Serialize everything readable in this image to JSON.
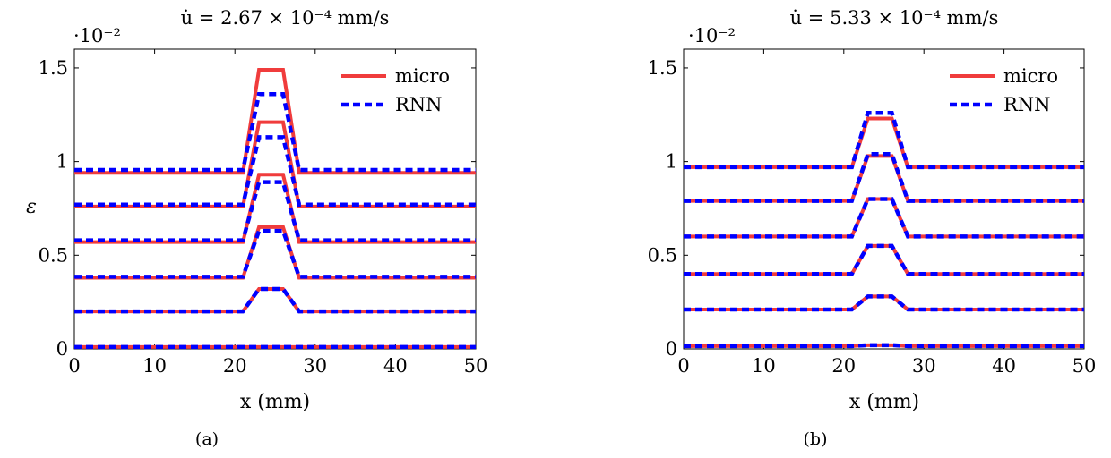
{
  "figure": {
    "panels": [
      {
        "title": "u̇ = 2.67 × 10⁻⁴ mm/s",
        "multiplier": "·10⁻²",
        "xlabel": "x (mm)",
        "ylabel": "ε",
        "caption": "(a)"
      },
      {
        "title": "u̇ = 5.33 × 10⁻⁴ mm/s",
        "multiplier": "·10⁻²",
        "xlabel": "x (mm)",
        "ylabel": "",
        "caption": "(b)"
      }
    ],
    "colors": {
      "micro": "#f03c3c",
      "rnn": "#0000ff"
    }
  },
  "chart_data": [
    {
      "type": "line",
      "title": "u̇ = 2.67 × 10⁻⁴ mm/s",
      "xlabel": "x (mm)",
      "ylabel": "ε",
      "y_multiplier": "·10⁻²",
      "xlim": [
        0,
        50
      ],
      "ylim": [
        0,
        1.6
      ],
      "xticks": [
        0,
        10,
        20,
        30,
        40,
        50
      ],
      "yticks": [
        0,
        0.5,
        1,
        1.5
      ],
      "ytick_labels": [
        "0",
        "0.5",
        "1",
        "1.5"
      ],
      "grid": false,
      "legend": {
        "position": "top-right",
        "entries": [
          {
            "name": "micro",
            "style": "solid"
          },
          {
            "name": "RNN",
            "style": "dashed"
          }
        ]
      },
      "series": [
        {
          "name": "micro",
          "x": [
            0,
            21,
            23,
            26,
            28,
            50
          ],
          "y": [
            0.01,
            0.01,
            0.01,
            0.01,
            0.01,
            0.01
          ]
        },
        {
          "name": "RNN",
          "x": [
            0,
            21,
            23,
            26,
            28,
            50
          ],
          "y": [
            0.01,
            0.01,
            0.01,
            0.01,
            0.01,
            0.01
          ]
        },
        {
          "name": "micro",
          "x": [
            0,
            21,
            23,
            26,
            28,
            50
          ],
          "y": [
            0.2,
            0.2,
            0.32,
            0.32,
            0.2,
            0.2
          ]
        },
        {
          "name": "RNN",
          "x": [
            0,
            21,
            23,
            26,
            28,
            50
          ],
          "y": [
            0.2,
            0.2,
            0.32,
            0.32,
            0.2,
            0.2
          ]
        },
        {
          "name": "micro",
          "x": [
            0,
            21,
            23,
            26,
            28,
            50
          ],
          "y": [
            0.38,
            0.38,
            0.65,
            0.65,
            0.38,
            0.38
          ]
        },
        {
          "name": "RNN",
          "x": [
            0,
            21,
            23,
            26,
            28,
            50
          ],
          "y": [
            0.385,
            0.385,
            0.63,
            0.63,
            0.385,
            0.385
          ]
        },
        {
          "name": "micro",
          "x": [
            0,
            21,
            23,
            26,
            28,
            50
          ],
          "y": [
            0.57,
            0.57,
            0.93,
            0.93,
            0.57,
            0.57
          ]
        },
        {
          "name": "RNN",
          "x": [
            0,
            21,
            23,
            26,
            28,
            50
          ],
          "y": [
            0.58,
            0.58,
            0.89,
            0.89,
            0.58,
            0.58
          ]
        },
        {
          "name": "micro",
          "x": [
            0,
            21,
            23,
            26,
            28,
            50
          ],
          "y": [
            0.76,
            0.76,
            1.21,
            1.21,
            0.76,
            0.76
          ]
        },
        {
          "name": "RNN",
          "x": [
            0,
            21,
            23,
            26,
            28,
            50
          ],
          "y": [
            0.77,
            0.77,
            1.13,
            1.13,
            0.77,
            0.77
          ]
        },
        {
          "name": "micro",
          "x": [
            0,
            21,
            23,
            26,
            28,
            50
          ],
          "y": [
            0.94,
            0.94,
            1.49,
            1.49,
            0.94,
            0.94
          ]
        },
        {
          "name": "RNN",
          "x": [
            0,
            21,
            23,
            26,
            28,
            50
          ],
          "y": [
            0.955,
            0.955,
            1.36,
            1.36,
            0.955,
            0.955
          ]
        }
      ]
    },
    {
      "type": "line",
      "title": "u̇ = 5.33 × 10⁻⁴ mm/s",
      "xlabel": "x (mm)",
      "ylabel": "",
      "y_multiplier": "·10⁻²",
      "xlim": [
        0,
        50
      ],
      "ylim": [
        0,
        1.6
      ],
      "xticks": [
        0,
        10,
        20,
        30,
        40,
        50
      ],
      "yticks": [
        0,
        0.5,
        1,
        1.5
      ],
      "ytick_labels": [
        "0",
        "0.5",
        "1",
        "1.5"
      ],
      "grid": false,
      "legend": {
        "position": "top-right",
        "entries": [
          {
            "name": "micro",
            "style": "solid"
          },
          {
            "name": "RNN",
            "style": "dashed"
          }
        ]
      },
      "series": [
        {
          "name": "micro",
          "x": [
            0,
            21,
            23,
            26,
            28,
            50
          ],
          "y": [
            0.015,
            0.015,
            0.02,
            0.02,
            0.015,
            0.015
          ]
        },
        {
          "name": "RNN",
          "x": [
            0,
            21,
            23,
            26,
            28,
            50
          ],
          "y": [
            0.015,
            0.015,
            0.02,
            0.02,
            0.015,
            0.015
          ]
        },
        {
          "name": "micro",
          "x": [
            0,
            21,
            23,
            26,
            28,
            50
          ],
          "y": [
            0.21,
            0.21,
            0.28,
            0.28,
            0.21,
            0.21
          ]
        },
        {
          "name": "RNN",
          "x": [
            0,
            21,
            23,
            26,
            28,
            50
          ],
          "y": [
            0.21,
            0.21,
            0.28,
            0.28,
            0.21,
            0.21
          ]
        },
        {
          "name": "micro",
          "x": [
            0,
            21,
            23,
            26,
            28,
            50
          ],
          "y": [
            0.4,
            0.4,
            0.55,
            0.55,
            0.4,
            0.4
          ]
        },
        {
          "name": "RNN",
          "x": [
            0,
            21,
            23,
            26,
            28,
            50
          ],
          "y": [
            0.4,
            0.4,
            0.55,
            0.55,
            0.4,
            0.4
          ]
        },
        {
          "name": "micro",
          "x": [
            0,
            21,
            23,
            26,
            28,
            50
          ],
          "y": [
            0.6,
            0.6,
            0.8,
            0.8,
            0.6,
            0.6
          ]
        },
        {
          "name": "RNN",
          "x": [
            0,
            21,
            23,
            26,
            28,
            50
          ],
          "y": [
            0.6,
            0.6,
            0.8,
            0.8,
            0.6,
            0.6
          ]
        },
        {
          "name": "micro",
          "x": [
            0,
            21,
            23,
            26,
            28,
            50
          ],
          "y": [
            0.79,
            0.79,
            1.03,
            1.03,
            0.79,
            0.79
          ]
        },
        {
          "name": "RNN",
          "x": [
            0,
            21,
            23,
            26,
            28,
            50
          ],
          "y": [
            0.79,
            0.79,
            1.04,
            1.04,
            0.79,
            0.79
          ]
        },
        {
          "name": "micro",
          "x": [
            0,
            21,
            23,
            26,
            28,
            50
          ],
          "y": [
            0.97,
            0.97,
            1.23,
            1.23,
            0.97,
            0.97
          ]
        },
        {
          "name": "RNN",
          "x": [
            0,
            21,
            23,
            26,
            28,
            50
          ],
          "y": [
            0.97,
            0.97,
            1.26,
            1.26,
            0.97,
            0.97
          ]
        }
      ]
    }
  ]
}
